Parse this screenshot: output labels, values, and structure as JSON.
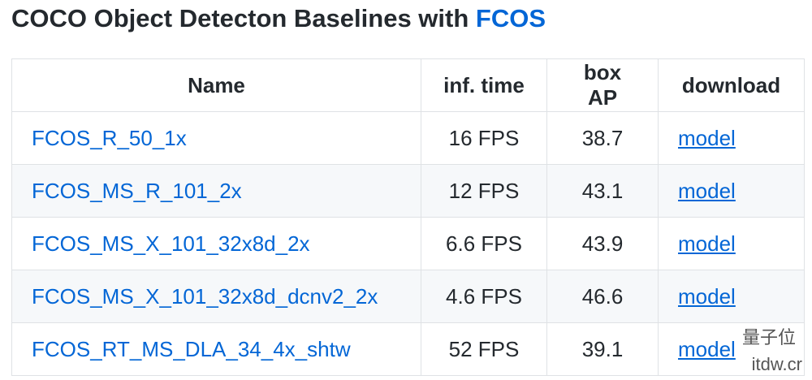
{
  "header": {
    "title": "COCO Object Detecton Baselines with",
    "title_link": "FCOS"
  },
  "table": {
    "columns": [
      "Name",
      "inf. time",
      "box AP",
      "download"
    ],
    "rows": [
      [
        "FCOS_R_50_1x",
        "16 FPS",
        "38.7",
        "model"
      ],
      [
        "FCOS_MS_R_101_2x",
        "12 FPS",
        "43.1",
        "model"
      ],
      [
        "FCOS_MS_X_101_32x8d_2x",
        "6.6 FPS",
        "43.9",
        "model"
      ],
      [
        "FCOS_MS_X_101_32x8d_dcnv2_2x",
        "4.6 FPS",
        "46.6",
        "model"
      ],
      [
        "FCOS_RT_MS_DLA_34_4x_shtw",
        "52 FPS",
        "39.1",
        "model"
      ]
    ]
  },
  "watermark": {
    "brand": "量子位",
    "site": "itdw.cr"
  }
}
